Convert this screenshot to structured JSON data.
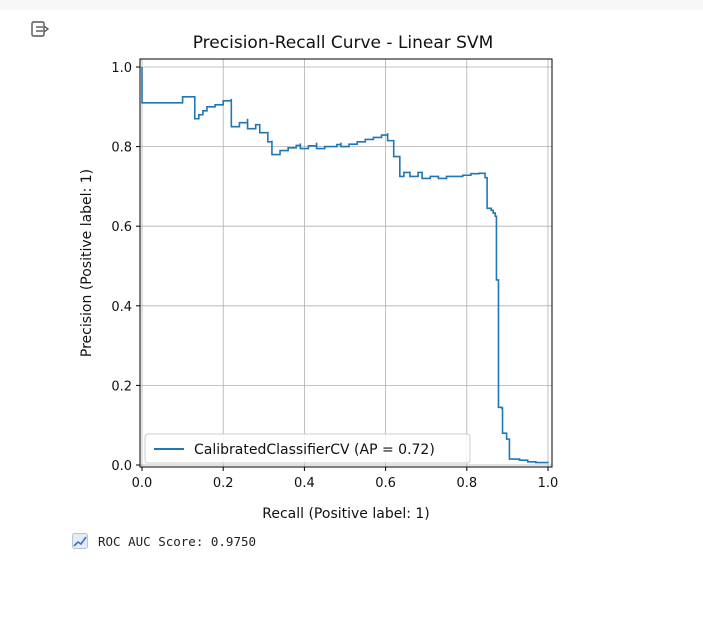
{
  "chart_data": {
    "type": "line",
    "title": "Precision-Recall Curve - Linear SVM",
    "xlabel": "Recall (Positive label: 1)",
    "ylabel": "Precision (Positive label: 1)",
    "xlim": [
      0.0,
      1.0
    ],
    "ylim": [
      0.0,
      1.0
    ],
    "xticks": [
      "0.0",
      "0.2",
      "0.4",
      "0.6",
      "0.8",
      "1.0"
    ],
    "yticks": [
      "0.0",
      "0.2",
      "0.4",
      "0.6",
      "0.8",
      "1.0"
    ],
    "grid": true,
    "legend_position": "lower-left",
    "series": [
      {
        "name": "CalibratedClassifierCV (AP = 0.72)",
        "color": "#1f77b4",
        "points": [
          [
            0.0,
            1.0
          ],
          [
            0.0,
            0.91
          ],
          [
            0.1,
            0.91
          ],
          [
            0.1,
            0.925
          ],
          [
            0.13,
            0.925
          ],
          [
            0.13,
            0.87
          ],
          [
            0.14,
            0.88
          ],
          [
            0.15,
            0.89
          ],
          [
            0.16,
            0.9
          ],
          [
            0.18,
            0.905
          ],
          [
            0.2,
            0.915
          ],
          [
            0.22,
            0.92
          ],
          [
            0.22,
            0.85
          ],
          [
            0.24,
            0.86
          ],
          [
            0.26,
            0.87
          ],
          [
            0.26,
            0.845
          ],
          [
            0.28,
            0.855
          ],
          [
            0.29,
            0.835
          ],
          [
            0.31,
            0.828
          ],
          [
            0.31,
            0.812
          ],
          [
            0.32,
            0.815
          ],
          [
            0.32,
            0.78
          ],
          [
            0.34,
            0.79
          ],
          [
            0.36,
            0.797
          ],
          [
            0.38,
            0.803
          ],
          [
            0.39,
            0.808
          ],
          [
            0.39,
            0.795
          ],
          [
            0.41,
            0.802
          ],
          [
            0.43,
            0.81
          ],
          [
            0.43,
            0.795
          ],
          [
            0.45,
            0.8
          ],
          [
            0.48,
            0.805
          ],
          [
            0.49,
            0.81
          ],
          [
            0.49,
            0.8
          ],
          [
            0.51,
            0.806
          ],
          [
            0.53,
            0.812
          ],
          [
            0.55,
            0.818
          ],
          [
            0.57,
            0.823
          ],
          [
            0.59,
            0.829
          ],
          [
            0.605,
            0.834
          ],
          [
            0.605,
            0.815
          ],
          [
            0.62,
            0.805
          ],
          [
            0.62,
            0.775
          ],
          [
            0.635,
            0.765
          ],
          [
            0.635,
            0.725
          ],
          [
            0.645,
            0.735
          ],
          [
            0.66,
            0.725
          ],
          [
            0.68,
            0.735
          ],
          [
            0.69,
            0.72
          ],
          [
            0.71,
            0.725
          ],
          [
            0.73,
            0.72
          ],
          [
            0.75,
            0.725
          ],
          [
            0.77,
            0.725
          ],
          [
            0.79,
            0.728
          ],
          [
            0.81,
            0.732
          ],
          [
            0.83,
            0.733
          ],
          [
            0.845,
            0.735
          ],
          [
            0.845,
            0.722
          ],
          [
            0.85,
            0.722
          ],
          [
            0.85,
            0.645
          ],
          [
            0.86,
            0.64
          ],
          [
            0.865,
            0.633
          ],
          [
            0.87,
            0.625
          ],
          [
            0.873,
            0.465
          ],
          [
            0.877,
            0.465
          ],
          [
            0.878,
            0.145
          ],
          [
            0.886,
            0.143
          ],
          [
            0.888,
            0.08
          ],
          [
            0.895,
            0.08
          ],
          [
            0.898,
            0.065
          ],
          [
            0.905,
            0.065
          ],
          [
            0.905,
            0.015
          ],
          [
            0.93,
            0.012
          ],
          [
            0.95,
            0.008
          ],
          [
            0.97,
            0.006
          ],
          [
            1.0,
            0.005
          ]
        ]
      }
    ]
  },
  "footer": {
    "roc_text": "ROC AUC Score: 0.9750",
    "roc_icon": "chart-increasing-icon"
  },
  "ui": {
    "toggle_icon": "output-toggle-icon"
  }
}
